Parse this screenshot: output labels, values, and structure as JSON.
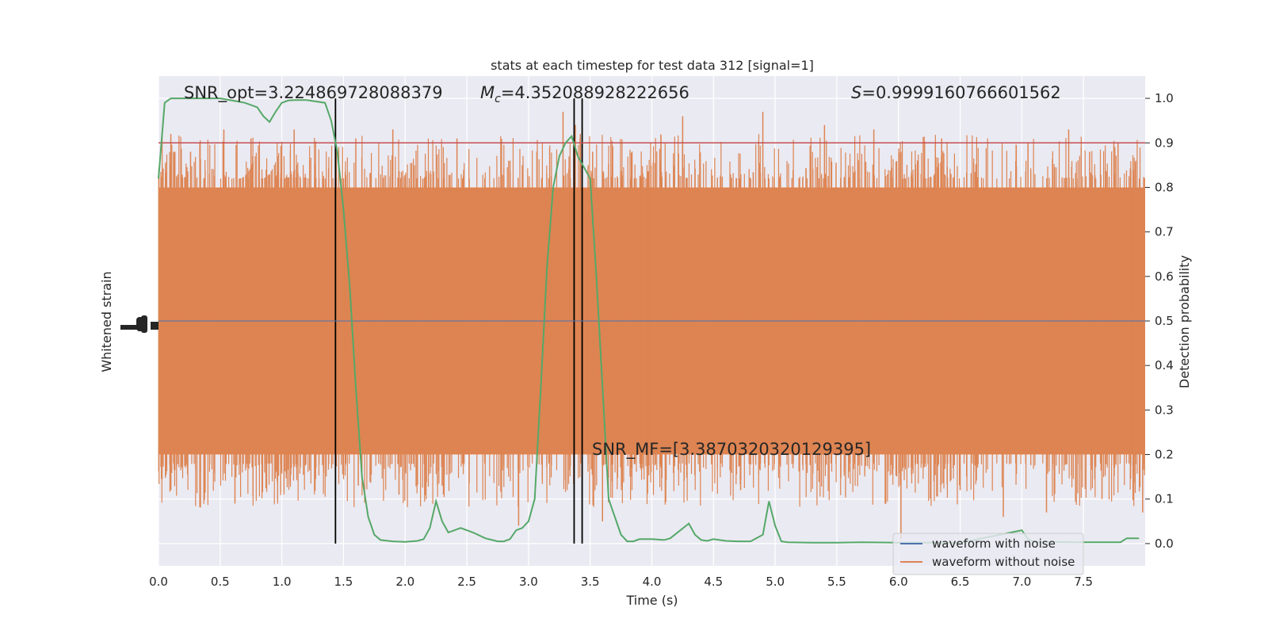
{
  "chart_data": {
    "type": "line",
    "title": "stats at each timestep for test data 312 [signal=1]",
    "xlabel": "Time (s)",
    "ylabel_left": "Whitened strain",
    "ylabel_right": "Detection probability",
    "xlim": [
      0.0,
      8.0
    ],
    "ylim_right": [
      -0.05,
      1.05
    ],
    "x_ticks": [
      "0.0",
      "0.5",
      "1.0",
      "1.5",
      "2.0",
      "2.5",
      "3.0",
      "3.5",
      "4.0",
      "4.5",
      "5.0",
      "5.5",
      "6.0",
      "6.5",
      "7.0",
      "7.5"
    ],
    "y_ticks_right": [
      "0.0",
      "0.1",
      "0.2",
      "0.3",
      "0.4",
      "0.5",
      "0.6",
      "0.7",
      "0.8",
      "0.9",
      "1.0"
    ],
    "grid": true,
    "legend_position": "lower-right",
    "annotations": {
      "snr_opt": "SNR_opt=3.224869728088379",
      "mc_symbol": "M",
      "mc_sub": "c",
      "mc_value": "=4.352088928222656",
      "s_symbol": "S",
      "s_value": "=0.9999160766601562",
      "snr_mf": "SNR_MF=[3.3870320320129395]"
    },
    "threshold": 0.9,
    "vertical_lines_x": [
      1.435,
      3.37,
      3.435
    ],
    "series": [
      {
        "name": "waveform with noise",
        "color": "#4c72b0",
        "axis": "left",
        "x": [
          0.0,
          8.0
        ],
        "y": [
          0.0,
          0.0
        ]
      },
      {
        "name": "waveform without noise",
        "color": "#dd8452",
        "axis": "left",
        "style": "dense noise band",
        "band_half_width": 0.3,
        "spikes_x": [
          0.1,
          0.26,
          0.53,
          0.75,
          1.1,
          1.6,
          1.9,
          2.42,
          2.85,
          2.95,
          3.28,
          3.38,
          3.42,
          3.52,
          4.25,
          4.9,
          5.4,
          5.8,
          6.02,
          6.35,
          7.05,
          7.38,
          7.55,
          7.78
        ],
        "spikes_y": [
          0.42,
          0.38,
          0.43,
          0.41,
          0.43,
          0.41,
          0.43,
          0.41,
          0.36,
          0.35,
          0.47,
          0.44,
          0.42,
          0.38,
          0.46,
          0.47,
          0.44,
          0.43,
          0.38,
          0.41,
          0.4,
          0.43,
          0.38,
          0.4
        ],
        "dips_x": [
          0.1,
          0.62,
          1.62,
          1.95,
          2.3,
          2.92,
          3.6,
          4.72,
          6.02,
          6.5,
          6.85,
          7.2,
          7.65,
          7.98
        ],
        "dips_y": [
          -0.38,
          -0.41,
          -0.37,
          -0.39,
          -0.37,
          -0.46,
          -0.45,
          -0.38,
          -0.49,
          -0.38,
          -0.44,
          -0.43,
          -0.4,
          -0.43
        ]
      },
      {
        "name": "detection probability",
        "color": "#55a868",
        "axis": "right",
        "x": [
          0.0,
          0.05,
          0.1,
          0.15,
          0.5,
          0.6,
          0.7,
          0.8,
          0.85,
          0.9,
          0.95,
          1.0,
          1.05,
          1.1,
          1.2,
          1.35,
          1.4,
          1.45,
          1.5,
          1.55,
          1.6,
          1.65,
          1.7,
          1.75,
          1.8,
          1.9,
          2.0,
          2.1,
          2.15,
          2.2,
          2.25,
          2.3,
          2.35,
          2.4,
          2.45,
          2.55,
          2.65,
          2.75,
          2.8,
          2.85,
          2.9,
          2.95,
          3.0,
          3.05,
          3.1,
          3.15,
          3.2,
          3.25,
          3.3,
          3.35,
          3.4,
          3.45,
          3.5,
          3.55,
          3.6,
          3.65,
          3.7,
          3.75,
          3.8,
          3.85,
          3.9,
          4.0,
          4.1,
          4.15,
          4.3,
          4.35,
          4.4,
          4.45,
          4.5,
          4.6,
          4.7,
          4.8,
          4.9,
          4.95,
          5.0,
          5.05,
          5.1,
          5.3,
          5.5,
          5.7,
          6.0,
          6.5,
          7.0,
          7.05,
          7.1,
          7.5,
          7.8,
          7.85,
          7.95
        ],
        "y": [
          0.82,
          0.99,
          1.0,
          1.0,
          1.0,
          0.995,
          0.99,
          0.98,
          0.96,
          0.947,
          0.97,
          0.99,
          0.995,
          0.996,
          0.996,
          0.99,
          0.95,
          0.88,
          0.75,
          0.58,
          0.35,
          0.15,
          0.06,
          0.02,
          0.008,
          0.005,
          0.004,
          0.006,
          0.01,
          0.035,
          0.095,
          0.05,
          0.025,
          0.03,
          0.035,
          0.025,
          0.012,
          0.005,
          0.005,
          0.01,
          0.03,
          0.035,
          0.05,
          0.1,
          0.35,
          0.62,
          0.8,
          0.87,
          0.9,
          0.915,
          0.87,
          0.845,
          0.82,
          0.6,
          0.35,
          0.1,
          0.06,
          0.02,
          0.005,
          0.005,
          0.01,
          0.01,
          0.008,
          0.012,
          0.045,
          0.02,
          0.008,
          0.006,
          0.01,
          0.006,
          0.005,
          0.005,
          0.02,
          0.095,
          0.04,
          0.005,
          0.003,
          0.002,
          0.002,
          0.003,
          0.002,
          0.002,
          0.03,
          0.01,
          0.004,
          0.003,
          0.003,
          0.012,
          0.012
        ]
      }
    ]
  }
}
